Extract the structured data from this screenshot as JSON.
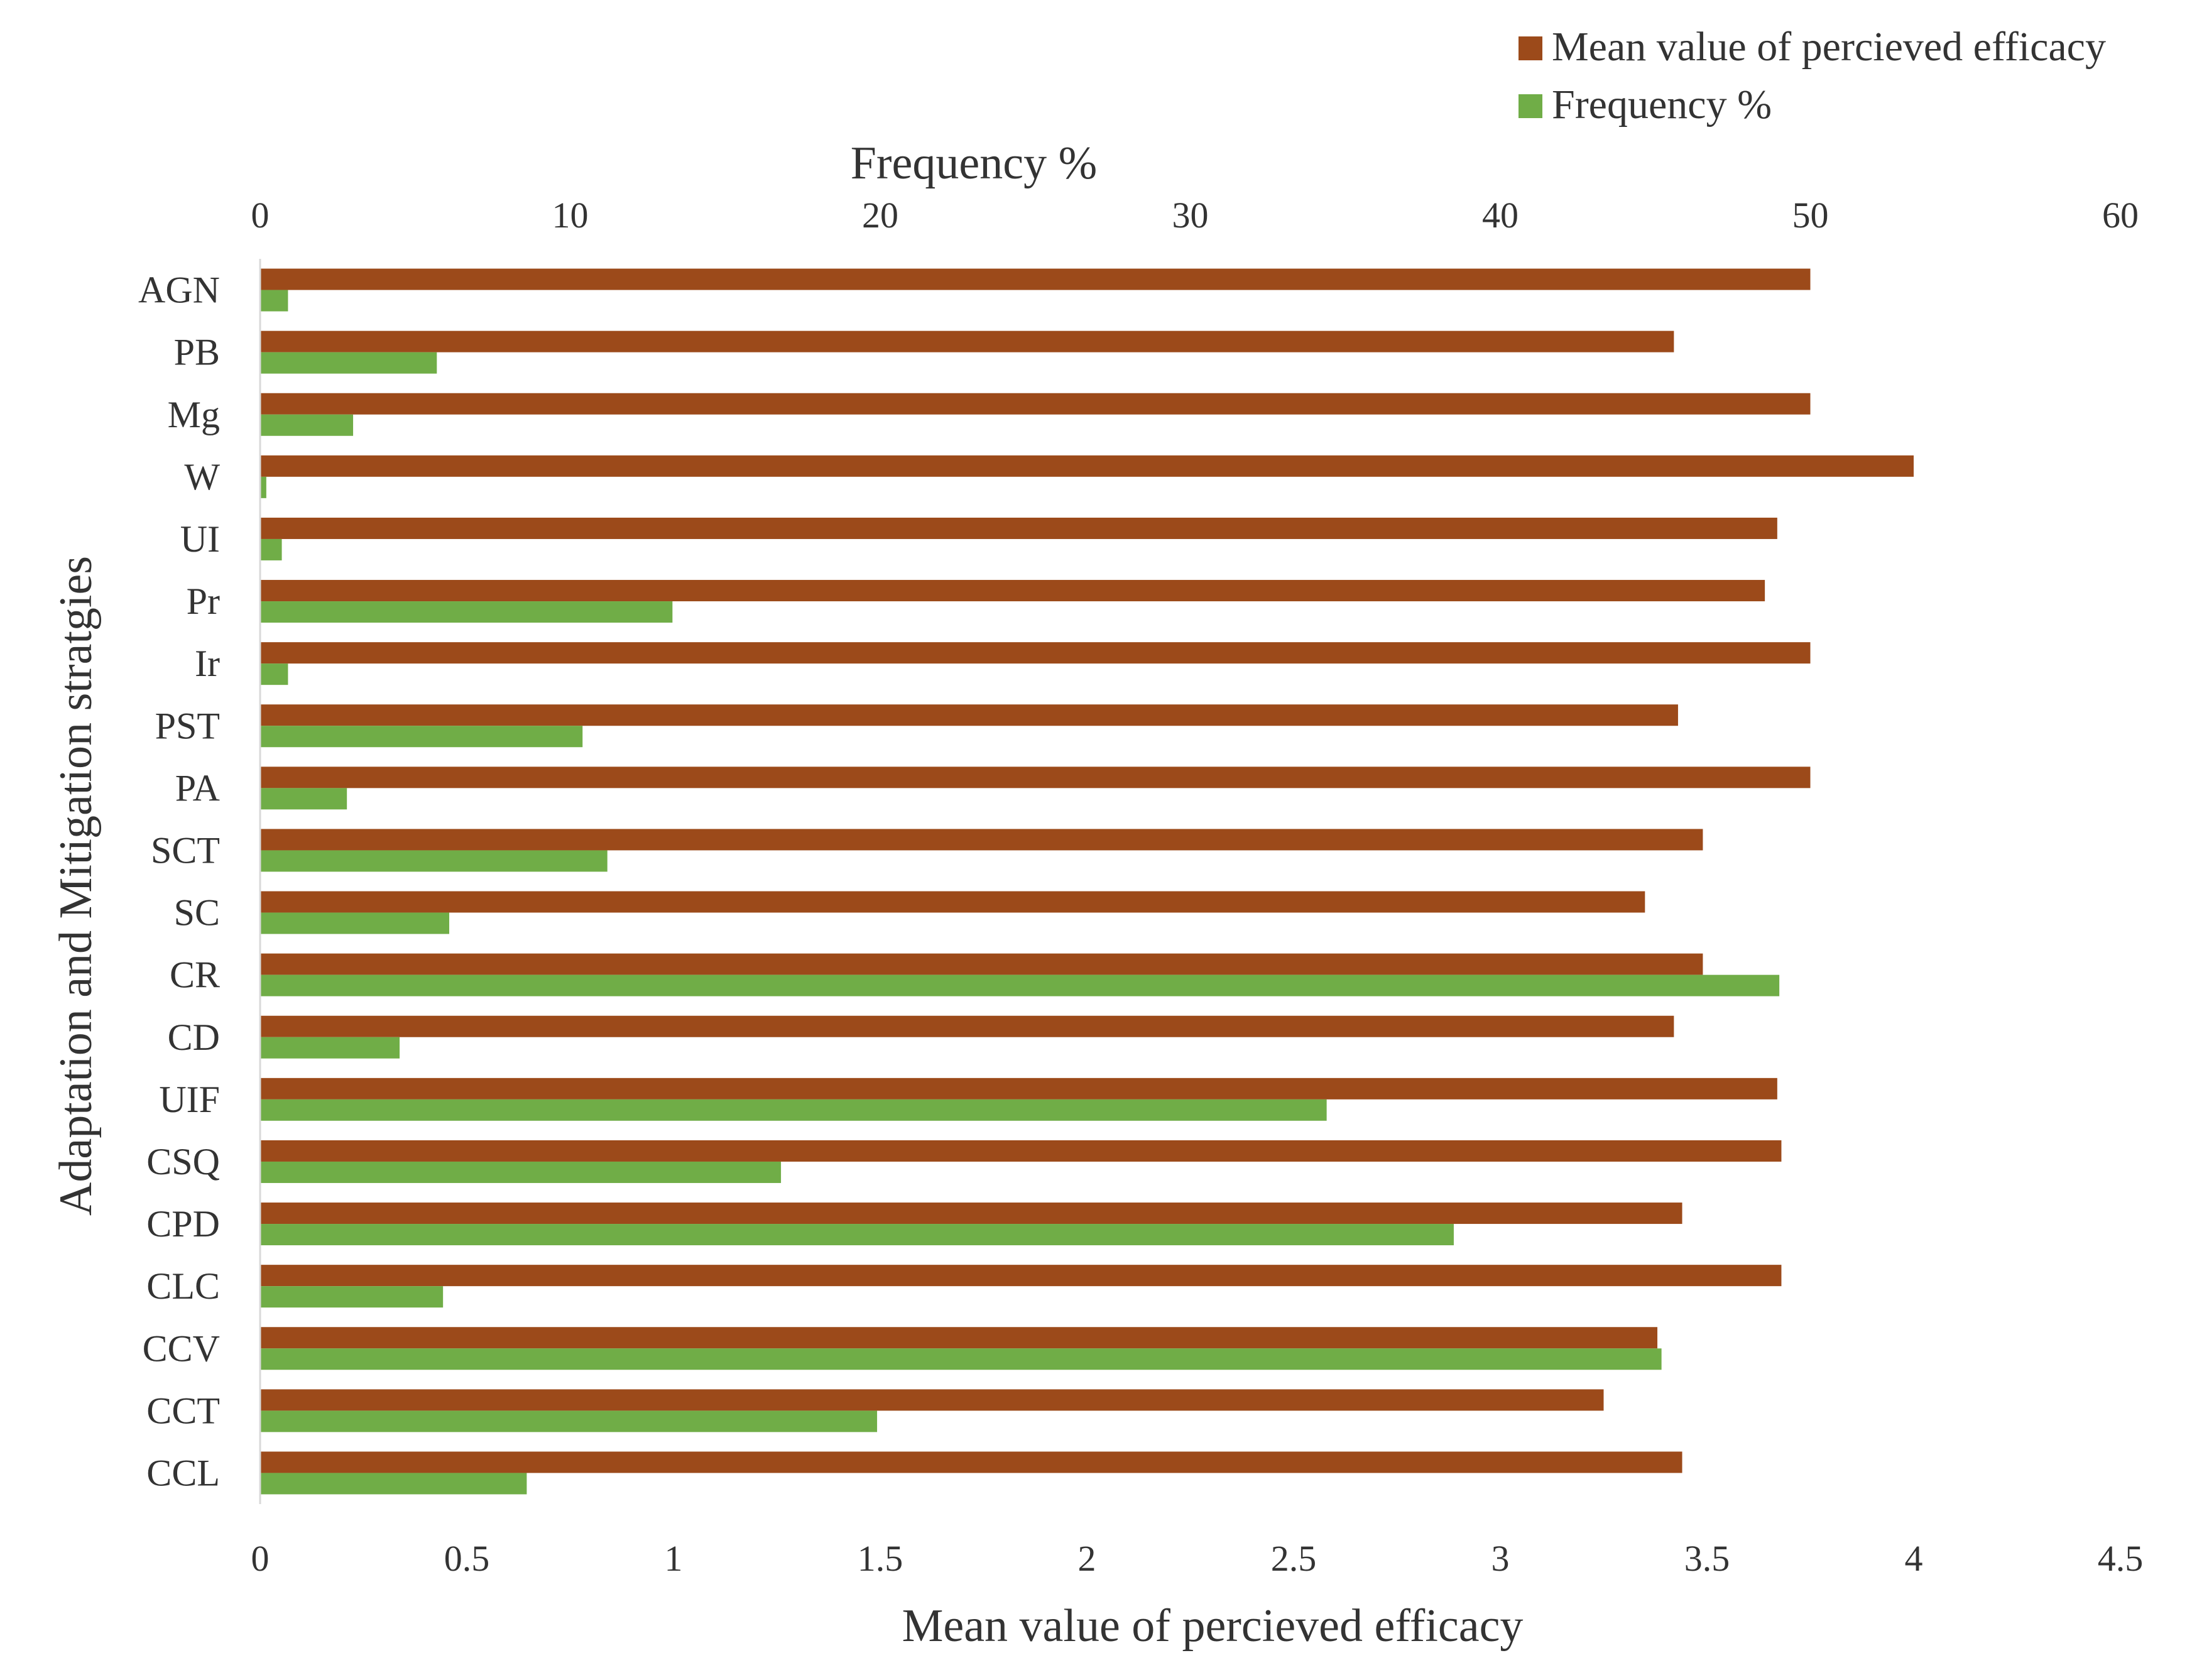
{
  "chart_data": {
    "type": "bar",
    "orientation": "horizontal",
    "categories": [
      "AGN",
      "PB",
      "Mg",
      "W",
      "UI",
      "Pr",
      "Ir",
      "PST",
      "PA",
      "SCT",
      "SC",
      "CR",
      "CD",
      "UIF",
      "CSQ",
      "CPD",
      "CLC",
      "CCV",
      "CCT",
      "CCL"
    ],
    "series": [
      {
        "name": "Mean value of percieved efficacy",
        "axis": "bottom",
        "color": "#9C4A1A",
        "values": [
          3.75,
          3.42,
          3.75,
          4.0,
          3.67,
          3.64,
          3.75,
          3.43,
          3.75,
          3.49,
          3.35,
          3.49,
          3.42,
          3.67,
          3.68,
          3.44,
          3.68,
          3.38,
          3.25,
          3.44
        ]
      },
      {
        "name": "Frequency %",
        "axis": "top",
        "color": "#70AD47",
        "values": [
          0.9,
          5.7,
          3.0,
          0.2,
          0.7,
          13.3,
          0.9,
          10.4,
          2.8,
          11.2,
          6.1,
          49.0,
          4.5,
          34.4,
          16.8,
          38.5,
          5.9,
          45.2,
          19.9,
          8.6
        ]
      }
    ],
    "x_bottom": {
      "label": "Mean value of percieved  efficacy",
      "ticks": [
        "0",
        "0.5",
        "1",
        "1.5",
        "2",
        "2.5",
        "3",
        "3.5",
        "4",
        "4.5"
      ],
      "range": [
        0,
        4.5
      ]
    },
    "x_top": {
      "label": "Frequency %",
      "ticks": [
        "0",
        "10",
        "20",
        "30",
        "40",
        "50",
        "60"
      ],
      "range": [
        0,
        60
      ]
    },
    "ylabel": "Adaptation  and Mitigation stratgies",
    "legend": {
      "position": "top-right",
      "entries": [
        "Mean value of percieved efficacy",
        "Frequency %"
      ]
    },
    "grid": false
  }
}
